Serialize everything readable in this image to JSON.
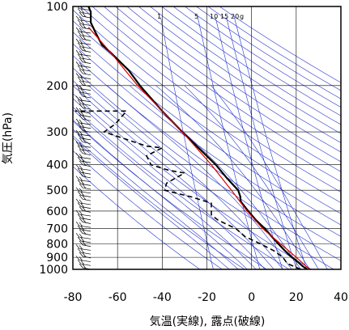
{
  "chart_data": {
    "type": "line",
    "xlabel": "気温(実線), 露点(破線)",
    "ylabel": "気圧(hPa)",
    "xlim": [
      -80,
      40
    ],
    "ylim": [
      1000,
      100
    ],
    "yscale": "log",
    "x_ticks": [
      -80,
      -60,
      -40,
      -20,
      0,
      20,
      40
    ],
    "y_ticks": [
      1000,
      900,
      800,
      700,
      600,
      500,
      400,
      300,
      200,
      100
    ],
    "mixing_ratio_labels": [
      "1",
      "5",
      "10",
      "15",
      "20",
      "g"
    ],
    "colors": {
      "temperature": "#000000",
      "reference_line": "#e00000",
      "isolines": "#2233cc",
      "grid": "#000000"
    },
    "series": [
      {
        "role": "temperature",
        "style": "solid",
        "points": [
          {
            "p": 1000,
            "t": 25
          },
          {
            "p": 975,
            "t": 23
          },
          {
            "p": 950,
            "t": 21.5
          },
          {
            "p": 925,
            "t": 20
          },
          {
            "p": 900,
            "t": 18
          },
          {
            "p": 850,
            "t": 15
          },
          {
            "p": 800,
            "t": 12
          },
          {
            "p": 750,
            "t": 9
          },
          {
            "p": 700,
            "t": 6
          },
          {
            "p": 650,
            "t": 2
          },
          {
            "p": 600,
            "t": -1.5
          },
          {
            "p": 550,
            "t": -5
          },
          {
            "p": 530,
            "t": -5
          },
          {
            "p": 500,
            "t": -6
          },
          {
            "p": 450,
            "t": -11
          },
          {
            "p": 400,
            "t": -16
          },
          {
            "p": 350,
            "t": -23
          },
          {
            "p": 300,
            "t": -31
          },
          {
            "p": 250,
            "t": -40
          },
          {
            "p": 200,
            "t": -50
          },
          {
            "p": 175,
            "t": -55
          },
          {
            "p": 150,
            "t": -63
          },
          {
            "p": 140,
            "t": -67
          },
          {
            "p": 125,
            "t": -70
          },
          {
            "p": 115,
            "t": -72
          },
          {
            "p": 105,
            "t": -72
          },
          {
            "p": 100,
            "t": -73
          }
        ]
      },
      {
        "role": "dewpoint",
        "style": "dashed",
        "points": [
          {
            "p": 1000,
            "t": 22
          },
          {
            "p": 950,
            "t": 16
          },
          {
            "p": 900,
            "t": 14
          },
          {
            "p": 850,
            "t": 10
          },
          {
            "p": 800,
            "t": 4
          },
          {
            "p": 750,
            "t": -3
          },
          {
            "p": 700,
            "t": -7
          },
          {
            "p": 650,
            "t": -15
          },
          {
            "p": 620,
            "t": -18
          },
          {
            "p": 600,
            "t": -18
          },
          {
            "p": 560,
            "t": -18
          },
          {
            "p": 530,
            "t": -27
          },
          {
            "p": 500,
            "t": -39
          },
          {
            "p": 470,
            "t": -38
          },
          {
            "p": 430,
            "t": -30
          },
          {
            "p": 420,
            "t": -37
          },
          {
            "p": 400,
            "t": -45
          },
          {
            "p": 370,
            "t": -47
          },
          {
            "p": 345,
            "t": -40
          },
          {
            "p": 340,
            "t": -47
          },
          {
            "p": 300,
            "t": -66
          },
          {
            "p": 280,
            "t": -61
          },
          {
            "p": 250,
            "t": -56
          },
          {
            "p": 250,
            "t": -79
          }
        ]
      },
      {
        "role": "reference",
        "style": "solid",
        "points": [
          {
            "p": 1000,
            "t": 26
          },
          {
            "p": 900,
            "t": 20
          },
          {
            "p": 800,
            "t": 13
          },
          {
            "p": 700,
            "t": 5
          },
          {
            "p": 600,
            "t": -2
          },
          {
            "p": 500,
            "t": -9
          },
          {
            "p": 400,
            "t": -18
          },
          {
            "p": 300,
            "t": -31
          },
          {
            "p": 200,
            "t": -51
          },
          {
            "p": 150,
            "t": -63
          },
          {
            "p": 120,
            "t": -73
          }
        ]
      }
    ],
    "wind_barb_column": {
      "x": -72,
      "count": 70
    }
  }
}
